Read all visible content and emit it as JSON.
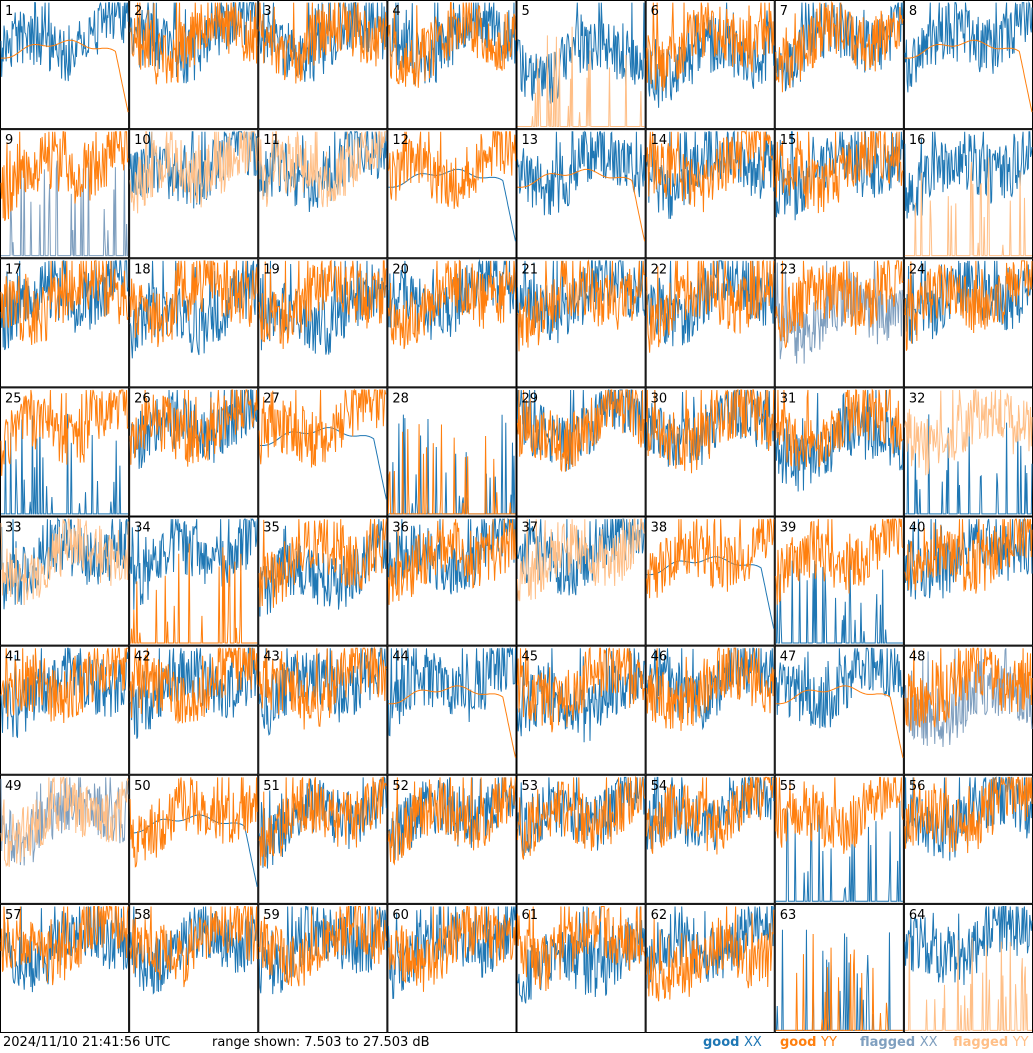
{
  "footer": {
    "timestamp": "2024/11/10 21:41:56 UTC",
    "range": "range shown: 7.503 to 27.503 dB"
  },
  "legend": [
    {
      "label": "good",
      "pol": "XX",
      "color": "#1f77b4"
    },
    {
      "label": "good",
      "pol": "YY",
      "color": "#ff7f0e"
    },
    {
      "label": "flagged",
      "pol": "XX",
      "color": "#7f9fbf"
    },
    {
      "label": "flagged",
      "pol": "YY",
      "color": "#ffbf87"
    }
  ],
  "chart_data": {
    "type": "line",
    "layout": "8x8 small multiples of spectra per tile",
    "ylim_db": [
      7.503,
      27.503
    ],
    "series_names": [
      "good XX",
      "good YY",
      "flagged XX",
      "flagged YY"
    ],
    "colors": {
      "good_xx": "#1f77b4",
      "good_yy": "#ff7f0e",
      "flagged_xx": "#7f9fbf",
      "flagged_yy": "#ffbf87"
    },
    "tiles": [
      {
        "n": "1",
        "xx": "good",
        "yy": "good",
        "xx_style": "normal",
        "yy_style": "smooth"
      },
      {
        "n": "2",
        "xx": "good",
        "yy": "good",
        "xx_style": "normal",
        "yy_style": "normal"
      },
      {
        "n": "3",
        "xx": "good",
        "yy": "good",
        "xx_style": "normal",
        "yy_style": "normal"
      },
      {
        "n": "4",
        "xx": "good",
        "yy": "good",
        "xx_style": "normal",
        "yy_style": "normal"
      },
      {
        "n": "5",
        "xx": "good",
        "yy": "flagged",
        "xx_style": "low",
        "yy_style": "spikes"
      },
      {
        "n": "6",
        "xx": "good",
        "yy": "good",
        "xx_style": "low",
        "yy_style": "normal"
      },
      {
        "n": "7",
        "xx": "good",
        "yy": "good",
        "xx_style": "normal",
        "yy_style": "normal"
      },
      {
        "n": "8",
        "xx": "good",
        "yy": "good",
        "xx_style": "normal",
        "yy_style": "smooth"
      },
      {
        "n": "9",
        "xx": "flagged",
        "yy": "good",
        "xx_style": "spikes",
        "yy_style": "normal"
      },
      {
        "n": "10",
        "xx": "good",
        "yy": "flagged",
        "xx_style": "normal",
        "yy_style": "normal"
      },
      {
        "n": "11",
        "xx": "good",
        "yy": "flagged",
        "xx_style": "normal",
        "yy_style": "normal"
      },
      {
        "n": "12",
        "xx": "good",
        "yy": "good",
        "xx_style": "smooth",
        "yy_style": "normal"
      },
      {
        "n": "13",
        "xx": "good",
        "yy": "good",
        "xx_style": "normal",
        "yy_style": "smooth"
      },
      {
        "n": "14",
        "xx": "good",
        "yy": "good",
        "xx_style": "normal",
        "yy_style": "normal"
      },
      {
        "n": "15",
        "xx": "good",
        "yy": "good",
        "xx_style": "normal",
        "yy_style": "normal"
      },
      {
        "n": "16",
        "xx": "good",
        "yy": "flagged",
        "xx_style": "normal",
        "yy_style": "spikes"
      },
      {
        "n": "17",
        "xx": "good",
        "yy": "good",
        "xx_style": "normal",
        "yy_style": "normal"
      },
      {
        "n": "18",
        "xx": "good",
        "yy": "good",
        "xx_style": "low",
        "yy_style": "normal"
      },
      {
        "n": "19",
        "xx": "good",
        "yy": "good",
        "xx_style": "low",
        "yy_style": "normal"
      },
      {
        "n": "20",
        "xx": "good",
        "yy": "good",
        "xx_style": "normal",
        "yy_style": "normal"
      },
      {
        "n": "21",
        "xx": "good",
        "yy": "good",
        "xx_style": "normal",
        "yy_style": "normal"
      },
      {
        "n": "22",
        "xx": "good",
        "yy": "good",
        "xx_style": "normal",
        "yy_style": "normal"
      },
      {
        "n": "23",
        "xx": "flagged",
        "yy": "good",
        "xx_style": "low",
        "yy_style": "normal"
      },
      {
        "n": "24",
        "xx": "good",
        "yy": "good",
        "xx_style": "normal",
        "yy_style": "normal"
      },
      {
        "n": "25",
        "xx": "good",
        "yy": "good",
        "xx_style": "spikes",
        "yy_style": "normal"
      },
      {
        "n": "26",
        "xx": "good",
        "yy": "good",
        "xx_style": "normal",
        "yy_style": "normal"
      },
      {
        "n": "27",
        "xx": "good",
        "yy": "good",
        "xx_style": "smooth",
        "yy_style": "normal"
      },
      {
        "n": "28",
        "xx": "good",
        "yy": "good",
        "xx_style": "spikes",
        "yy_style": "spikes"
      },
      {
        "n": "29",
        "xx": "good",
        "yy": "good",
        "xx_style": "normal",
        "yy_style": "normal"
      },
      {
        "n": "30",
        "xx": "good",
        "yy": "good",
        "xx_style": "normal",
        "yy_style": "normal"
      },
      {
        "n": "31",
        "xx": "good",
        "yy": "good",
        "xx_style": "low",
        "yy_style": "normal"
      },
      {
        "n": "32",
        "xx": "good",
        "yy": "flagged",
        "xx_style": "spikes",
        "yy_style": "normal"
      },
      {
        "n": "33",
        "xx": "good",
        "yy": "flagged",
        "xx_style": "normal",
        "yy_style": "normal"
      },
      {
        "n": "34",
        "xx": "good",
        "yy": "good",
        "xx_style": "normal",
        "yy_style": "spikes"
      },
      {
        "n": "35",
        "xx": "good",
        "yy": "good",
        "xx_style": "low",
        "yy_style": "normal"
      },
      {
        "n": "36",
        "xx": "good",
        "yy": "good",
        "xx_style": "normal",
        "yy_style": "normal"
      },
      {
        "n": "37",
        "xx": "good",
        "yy": "flagged",
        "xx_style": "normal",
        "yy_style": "normal"
      },
      {
        "n": "38",
        "xx": "good",
        "yy": "good",
        "xx_style": "smooth",
        "yy_style": "normal"
      },
      {
        "n": "39",
        "xx": "good",
        "yy": "good",
        "xx_style": "spikes",
        "yy_style": "normal"
      },
      {
        "n": "40",
        "xx": "good",
        "yy": "good",
        "xx_style": "normal",
        "yy_style": "normal"
      },
      {
        "n": "41",
        "xx": "good",
        "yy": "good",
        "xx_style": "normal",
        "yy_style": "normal"
      },
      {
        "n": "42",
        "xx": "good",
        "yy": "good",
        "xx_style": "normal",
        "yy_style": "normal"
      },
      {
        "n": "43",
        "xx": "good",
        "yy": "good",
        "xx_style": "normal",
        "yy_style": "normal"
      },
      {
        "n": "44",
        "xx": "good",
        "yy": "good",
        "xx_style": "normal",
        "yy_style": "smooth"
      },
      {
        "n": "45",
        "xx": "good",
        "yy": "good",
        "xx_style": "low",
        "yy_style": "normal"
      },
      {
        "n": "46",
        "xx": "good",
        "yy": "good",
        "xx_style": "normal",
        "yy_style": "normal"
      },
      {
        "n": "47",
        "xx": "good",
        "yy": "good",
        "xx_style": "normal",
        "yy_style": "smooth"
      },
      {
        "n": "48",
        "xx": "flagged",
        "yy": "good",
        "xx_style": "low",
        "yy_style": "normal"
      },
      {
        "n": "49",
        "xx": "flagged",
        "yy": "flagged",
        "xx_style": "normal",
        "yy_style": "normal"
      },
      {
        "n": "50",
        "xx": "good",
        "yy": "good",
        "xx_style": "smooth",
        "yy_style": "normal"
      },
      {
        "n": "51",
        "xx": "good",
        "yy": "good",
        "xx_style": "normal",
        "yy_style": "normal"
      },
      {
        "n": "52",
        "xx": "good",
        "yy": "good",
        "xx_style": "normal",
        "yy_style": "normal"
      },
      {
        "n": "53",
        "xx": "good",
        "yy": "good",
        "xx_style": "normal",
        "yy_style": "normal"
      },
      {
        "n": "54",
        "xx": "good",
        "yy": "good",
        "xx_style": "normal",
        "yy_style": "normal"
      },
      {
        "n": "55",
        "xx": "good",
        "yy": "good",
        "xx_style": "spikes",
        "yy_style": "normal"
      },
      {
        "n": "56",
        "xx": "good",
        "yy": "good",
        "xx_style": "normal",
        "yy_style": "normal"
      },
      {
        "n": "57",
        "xx": "good",
        "yy": "good",
        "xx_style": "normal",
        "yy_style": "normal"
      },
      {
        "n": "58",
        "xx": "good",
        "yy": "good",
        "xx_style": "normal",
        "yy_style": "normal"
      },
      {
        "n": "59",
        "xx": "good",
        "yy": "good",
        "xx_style": "normal",
        "yy_style": "normal"
      },
      {
        "n": "60",
        "xx": "good",
        "yy": "good",
        "xx_style": "normal",
        "yy_style": "normal"
      },
      {
        "n": "61",
        "xx": "good",
        "yy": "good",
        "xx_style": "low",
        "yy_style": "normal"
      },
      {
        "n": "62",
        "xx": "good",
        "yy": "good",
        "xx_style": "normal",
        "yy_style": "low"
      },
      {
        "n": "63",
        "xx": "good",
        "yy": "good",
        "xx_style": "spikes",
        "yy_style": "spikes"
      },
      {
        "n": "64",
        "xx": "good",
        "yy": "flagged",
        "xx_style": "normal",
        "yy_style": "spikes"
      }
    ]
  }
}
